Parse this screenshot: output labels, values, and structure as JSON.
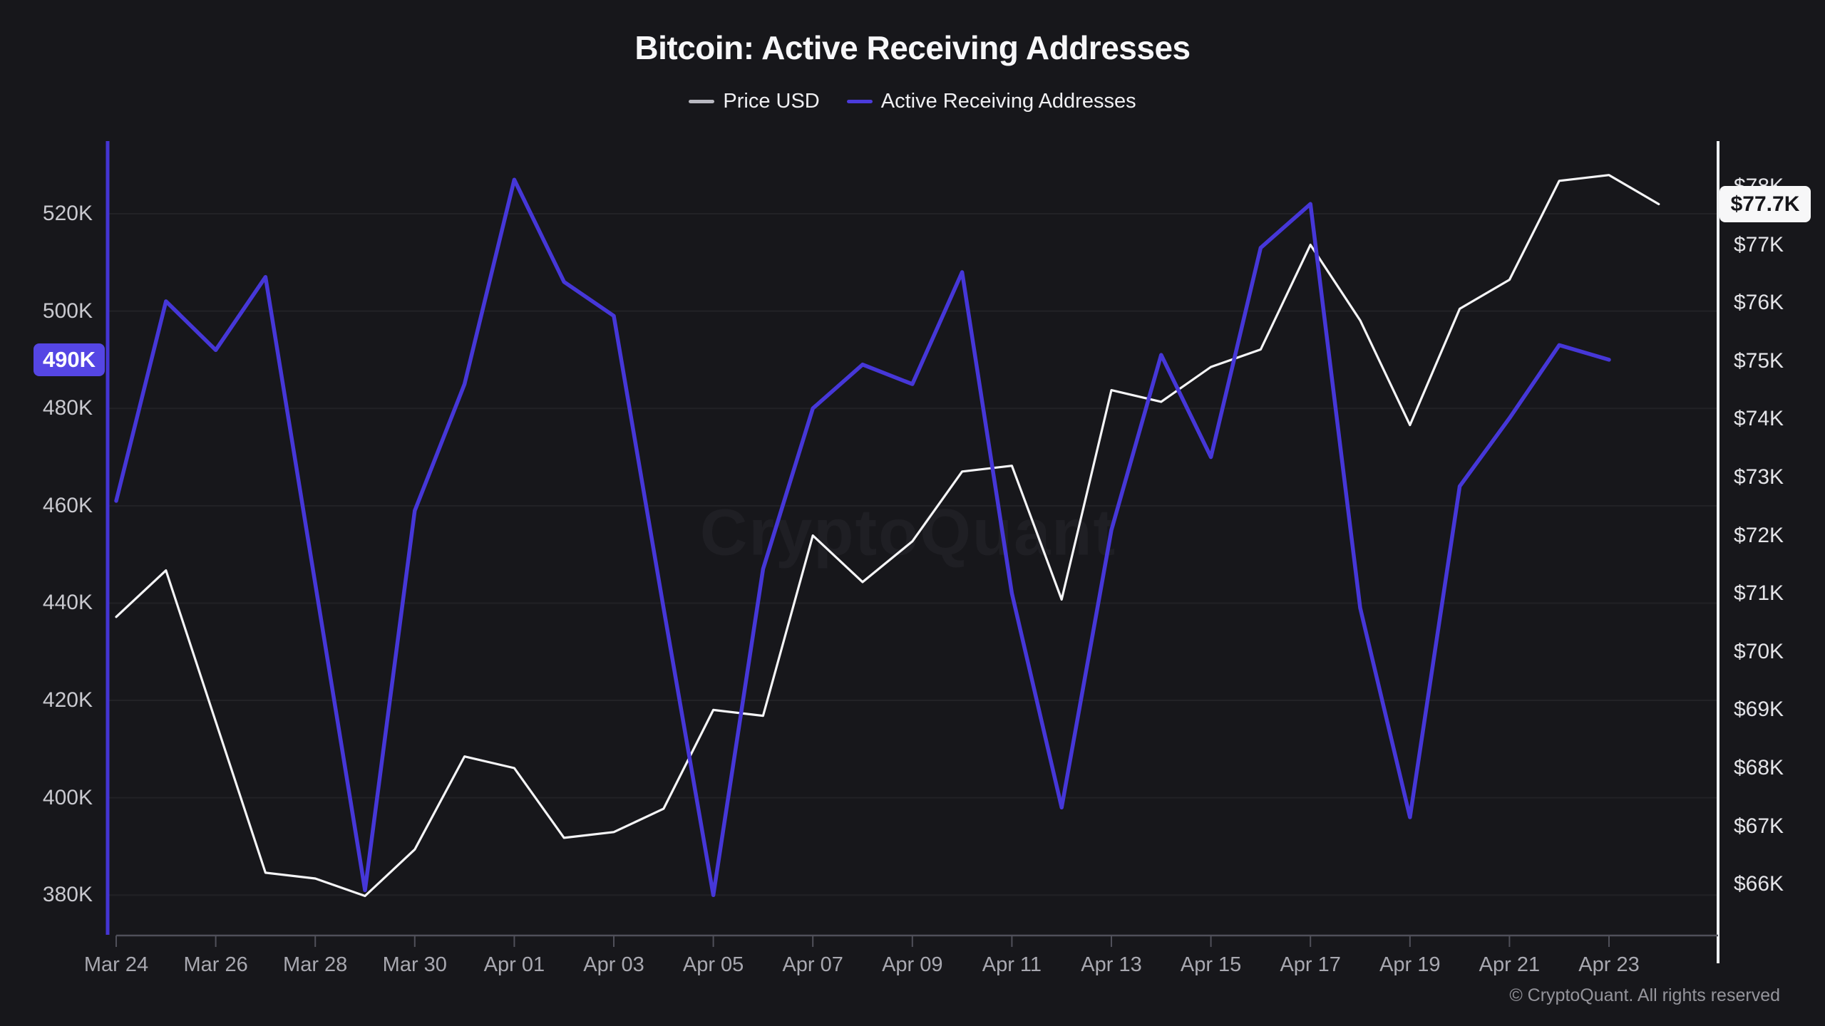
{
  "header": {
    "title": "Bitcoin: Active Receiving Addresses"
  },
  "watermark": "CryptoQuant",
  "footer": {
    "copyright": "© CryptoQuant. All rights reserved"
  },
  "colors": {
    "background": "#17171b",
    "price_line": "#f5f5f7",
    "addresses_line": "#4637d8",
    "addresses_badge_bg": "#5546e4",
    "price_badge_bg": "#f7f7f8",
    "left_axis_line": "#4435d3",
    "right_axis_line": "#eef0f2",
    "bottom_axis_line": "#50505a",
    "gridline": "rgba(255,255,255,0.05)",
    "legend_price_dash": "#b9b9c1",
    "legend_addresses_dash": "#4b3bdb"
  },
  "chart_data": {
    "type": "line",
    "title": "Bitcoin: Active Receiving Addresses",
    "grid": "horizontal",
    "legend": [
      {
        "label": "Price USD",
        "color": "#b9b9c1"
      },
      {
        "label": "Active Receiving Addresses",
        "color": "#4b3bdb"
      }
    ],
    "x_dates": [
      "Mar 24",
      "Mar 25",
      "Mar 26",
      "Mar 27",
      "Mar 28",
      "Mar 29",
      "Mar 30",
      "Mar 31",
      "Apr 01",
      "Apr 02",
      "Apr 03",
      "Apr 04",
      "Apr 05",
      "Apr 06",
      "Apr 07",
      "Apr 08",
      "Apr 09",
      "Apr 10",
      "Apr 11",
      "Apr 12",
      "Apr 13",
      "Apr 14",
      "Apr 15",
      "Apr 16",
      "Apr 17",
      "Apr 18",
      "Apr 19",
      "Apr 20",
      "Apr 21",
      "Apr 22",
      "Apr 23",
      "Apr 24"
    ],
    "x_tick_labels": [
      "Mar 24",
      "Mar 26",
      "Mar 28",
      "Mar 30",
      "Apr 01",
      "Apr 03",
      "Apr 05",
      "Apr 07",
      "Apr 09",
      "Apr 11",
      "Apr 13",
      "Apr 15",
      "Apr 17",
      "Apr 19",
      "Apr 21",
      "Apr 23"
    ],
    "series": [
      {
        "name": "Price USD",
        "axis": "right",
        "unit": "USD thousands",
        "color": "#f5f5f7",
        "values": [
          70.6,
          71.4,
          68.8,
          66.2,
          66.1,
          65.8,
          66.6,
          68.2,
          68.0,
          66.8,
          66.9,
          67.3,
          69.0,
          68.9,
          72.0,
          71.2,
          71.9,
          73.1,
          73.2,
          70.9,
          74.5,
          74.3,
          74.9,
          75.2,
          77.0,
          75.7,
          73.9,
          75.9,
          76.4,
          78.1,
          78.2,
          77.7
        ]
      },
      {
        "name": "Active Receiving Addresses",
        "axis": "left",
        "unit": "addresses thousands",
        "color": "#4637d8",
        "values": [
          461,
          502,
          492,
          507,
          444,
          381,
          459,
          485,
          527,
          506,
          499,
          439,
          380,
          447,
          480,
          489,
          485,
          508,
          442,
          398,
          455,
          491,
          470,
          513,
          522,
          439,
          396,
          464,
          478,
          493,
          490,
          null
        ]
      }
    ],
    "left_axis": {
      "title": "Active Receiving Addresses",
      "tick_labels": [
        "520K",
        "500K",
        "480K",
        "460K",
        "440K",
        "420K",
        "400K",
        "380K"
      ],
      "tick_values_k": [
        520,
        500,
        480,
        460,
        440,
        420,
        400,
        380
      ],
      "range_k": [
        372,
        535
      ]
    },
    "right_axis": {
      "title": "Price USD",
      "tick_labels": [
        "$78K",
        "$77K",
        "$76K",
        "$75K",
        "$74K",
        "$73K",
        "$72K",
        "$71K",
        "$70K",
        "$69K",
        "$68K",
        "$67K",
        "$66K"
      ],
      "tick_values_usd_k": [
        78,
        77,
        76,
        75,
        74,
        73,
        72,
        71,
        70,
        69,
        68,
        67,
        66
      ],
      "range_usd_k": [
        65.1,
        78.8
      ]
    },
    "annotations": {
      "addresses_last_badge": "490K",
      "addresses_last_k": 490,
      "price_last_badge": "$77.7K",
      "price_last_usd_k": 77.7
    }
  }
}
